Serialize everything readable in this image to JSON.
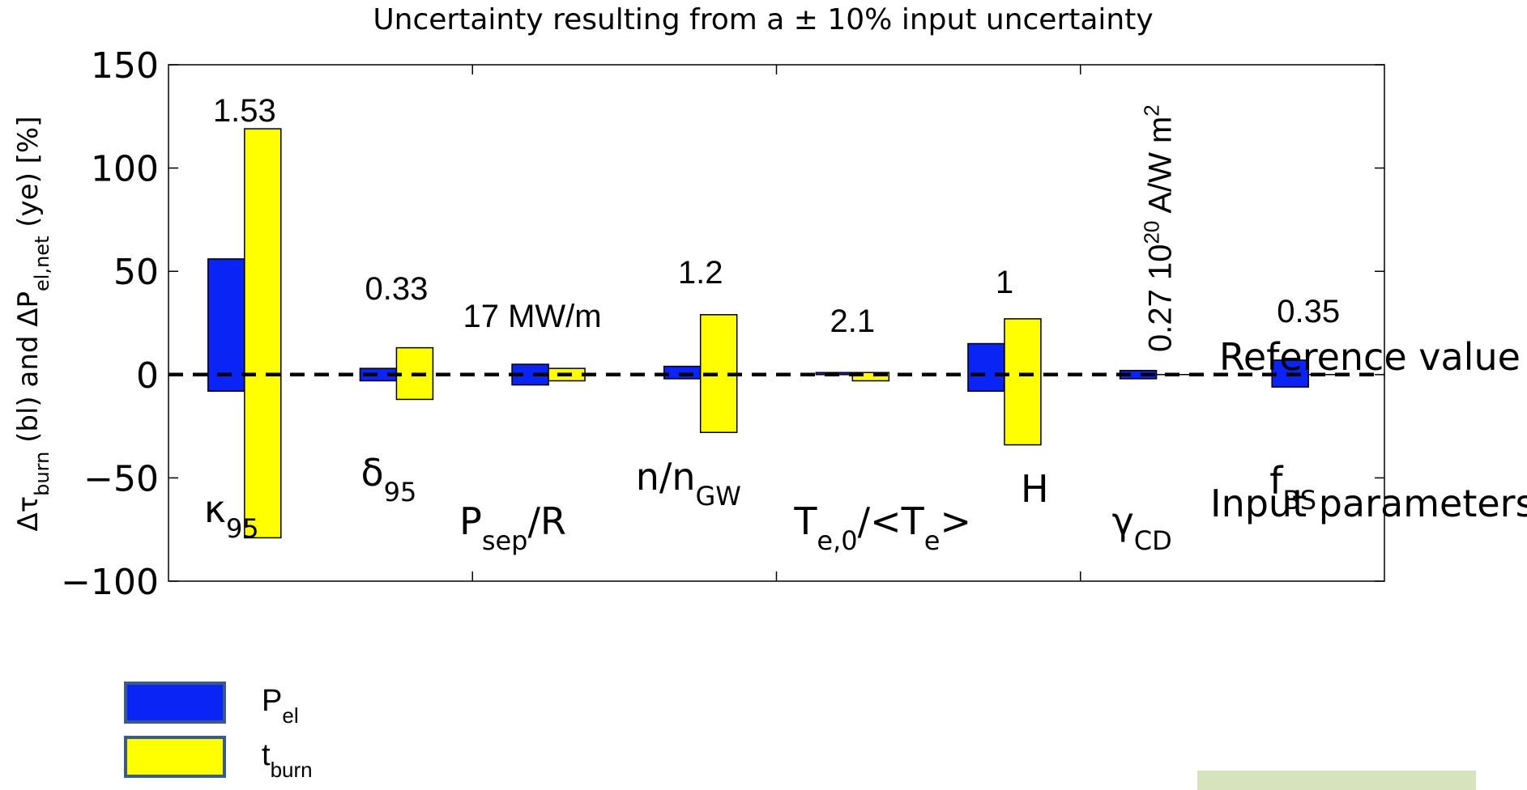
{
  "chart_data": {
    "type": "bar",
    "title": "Uncertainty resulting from a ± 10% input uncertainty",
    "ylabel": {
      "parts": [
        {
          "t": "Δτ",
          "sub": false
        },
        {
          "t": "burn",
          "sub": true
        },
        {
          "t": " (bl) and ΔP",
          "sub": false
        },
        {
          "t": "el,net",
          "sub": true
        },
        {
          "t": " (ye) [%]",
          "sub": false
        }
      ]
    },
    "ylim": [
      -100,
      150
    ],
    "yticks": [
      {
        "v": 150,
        "label": "150"
      },
      {
        "v": 100,
        "label": "100"
      },
      {
        "v": 50,
        "label": "50"
      },
      {
        "v": 0,
        "label": "0"
      },
      {
        "v": -50,
        "label": "−50"
      },
      {
        "v": -100,
        "label": "−100"
      }
    ],
    "reference_label": "Reference value",
    "input_label": "Input parameters",
    "series": [
      {
        "name": "P",
        "name_sub": "el",
        "color": "#0a24f5"
      },
      {
        "name": "t",
        "name_sub": "burn",
        "color": "#ffff00"
      }
    ],
    "groups": [
      {
        "param": "κ",
        "param_sub": "95",
        "ref_value": "1.53",
        "blue": [
          -8,
          56
        ],
        "yellow": [
          -79,
          119
        ]
      },
      {
        "param": "δ",
        "param_sub": "95",
        "ref_value": "0.33",
        "blue": [
          -3,
          3
        ],
        "yellow": [
          -12,
          13
        ]
      },
      {
        "param": "P",
        "param_sub": "sep",
        "param_post": "/R",
        "ref_value": "17 MW/m",
        "blue": [
          -5,
          5
        ],
        "yellow": [
          -3,
          3
        ]
      },
      {
        "param": "n/n",
        "param_sub": "GW",
        "ref_value": "1.2",
        "blue": [
          -2,
          4
        ],
        "yellow": [
          -28,
          29
        ]
      },
      {
        "param": "T",
        "param_sub": "e,0",
        "param_post": "/<T",
        "param_sub2": "e",
        "param_post2": ">",
        "ref_value": "2.1",
        "blue": [
          0,
          1
        ],
        "yellow": [
          -3,
          1
        ]
      },
      {
        "param": "H",
        "ref_value": "1",
        "blue": [
          -8,
          15
        ],
        "yellow": [
          -34,
          27
        ]
      },
      {
        "param": "γ",
        "param_sub": "CD",
        "ref_value": "0.27 10",
        "ref_sup": "20",
        "ref_post": " A/W m",
        "ref_sup2": "2",
        "blue": [
          -2,
          2
        ],
        "yellow": [
          0,
          0
        ]
      },
      {
        "param": "f",
        "param_sub": "BS",
        "ref_value": "0.35",
        "blue": [
          -6,
          7
        ],
        "yellow": [
          0,
          0
        ]
      }
    ]
  },
  "footer_box_color": "#d6e3bc"
}
